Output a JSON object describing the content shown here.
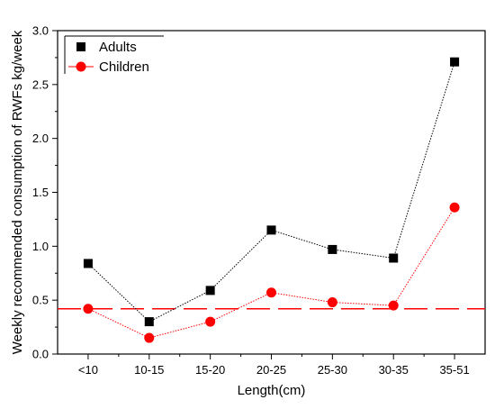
{
  "chart_data": {
    "type": "line",
    "xlabel": "Length(cm)",
    "ylabel": "Weekly recommended consumption of RWFs kg/week",
    "categories": [
      "<10",
      "10-15",
      "15-20",
      "20-25",
      "25-30",
      "30-35",
      "35-51"
    ],
    "ylim": [
      0.0,
      3.0
    ],
    "yticks": [
      "0.0",
      "0.5",
      "1.0",
      "1.5",
      "2.0",
      "2.5",
      "3.0"
    ],
    "series": [
      {
        "name": "Adults",
        "values": [
          0.84,
          0.3,
          0.59,
          1.15,
          0.97,
          0.89,
          2.71
        ],
        "color": "#000000",
        "marker": "square",
        "line_style": "dotted"
      },
      {
        "name": "Children",
        "values": [
          0.42,
          0.15,
          0.3,
          0.57,
          0.48,
          0.45,
          1.36
        ],
        "color": "#ff0000",
        "marker": "circle",
        "line_style": "dotted"
      }
    ],
    "reference_line": {
      "value": 0.42,
      "color": "#ff0000",
      "style": "dashed"
    },
    "legend_position": "top-left",
    "grid": false
  }
}
